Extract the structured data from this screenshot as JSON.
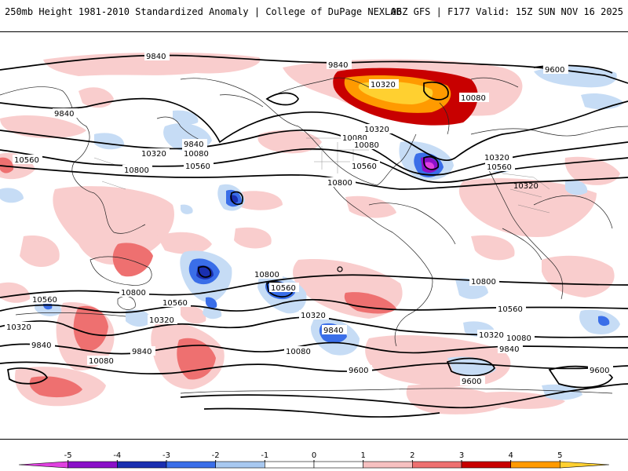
{
  "header": {
    "title": "250mb Height 1981-2010 Standardized Anomaly | College of DuPage NEXLAB",
    "run_info": "06Z GFS | F177 Valid: 15Z SUN NOV 16 2025"
  },
  "map": {
    "contour_labels": [
      {
        "id": "c1",
        "text": "9840"
      },
      {
        "id": "c2",
        "text": "9840"
      },
      {
        "id": "c3",
        "text": "9600"
      },
      {
        "id": "c4",
        "text": "9840"
      },
      {
        "id": "c5",
        "text": "10320"
      },
      {
        "id": "c6",
        "text": "10080"
      },
      {
        "id": "c7",
        "text": "10320"
      },
      {
        "id": "c8",
        "text": "10560"
      },
      {
        "id": "c9",
        "text": "10800"
      },
      {
        "id": "c10",
        "text": "9840"
      },
      {
        "id": "c11",
        "text": "10080"
      },
      {
        "id": "c12",
        "text": "10560"
      },
      {
        "id": "c13",
        "text": "10320"
      },
      {
        "id": "c14",
        "text": "10080"
      },
      {
        "id": "c15",
        "text": "10320"
      },
      {
        "id": "c16",
        "text": "10080"
      },
      {
        "id": "c17",
        "text": "10560"
      },
      {
        "id": "c18",
        "text": "10800"
      },
      {
        "id": "c19",
        "text": "10320"
      },
      {
        "id": "c20",
        "text": "10560"
      },
      {
        "id": "c21",
        "text": "10800"
      },
      {
        "id": "c22",
        "text": "10560"
      },
      {
        "id": "c23",
        "text": "10320"
      },
      {
        "id": "c24",
        "text": "9840"
      },
      {
        "id": "c25",
        "text": "10080"
      },
      {
        "id": "c26",
        "text": "10800"
      },
      {
        "id": "c27",
        "text": "10560"
      },
      {
        "id": "c28",
        "text": "10320"
      },
      {
        "id": "c29",
        "text": "9840"
      },
      {
        "id": "c30",
        "text": "10080"
      },
      {
        "id": "c31",
        "text": "10560"
      },
      {
        "id": "c32",
        "text": "10320"
      },
      {
        "id": "c33",
        "text": "10800"
      },
      {
        "id": "c34",
        "text": "10560"
      },
      {
        "id": "c35",
        "text": "10320"
      },
      {
        "id": "c36",
        "text": "10080"
      },
      {
        "id": "c37",
        "text": "9840"
      },
      {
        "id": "c38",
        "text": "9600"
      },
      {
        "id": "c39",
        "text": "9600"
      },
      {
        "id": "c40",
        "text": "9600"
      },
      {
        "id": "c41",
        "text": "9840"
      }
    ]
  },
  "colorbar": {
    "ticks": [
      "-5",
      "-4",
      "-3",
      "-2",
      "-1",
      "0",
      "1",
      "2",
      "3",
      "4",
      "5"
    ],
    "colors": [
      "#e040e0",
      "#8a10c8",
      "#1a2fb0",
      "#3a6ee8",
      "#a8c8f0",
      "#ffffff",
      "#ffffff",
      "#f7c0c0",
      "#ee7070",
      "#c80000",
      "#ff9a00",
      "#ffd030"
    ]
  }
}
